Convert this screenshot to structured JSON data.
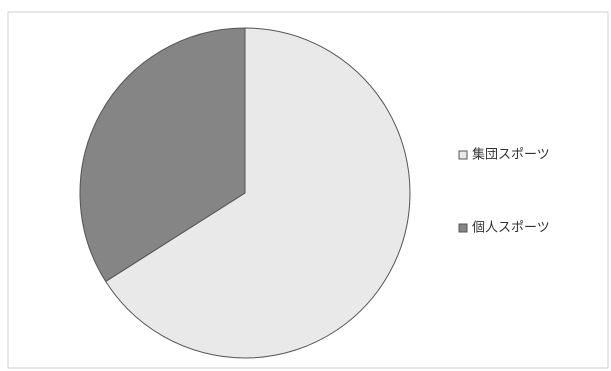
{
  "chart_data": {
    "type": "pie",
    "categories": [
      "集団スポーツ",
      "個人スポーツ"
    ],
    "values": [
      66,
      34
    ],
    "colors": [
      "#e9e9e9",
      "#858585"
    ],
    "legend": "right"
  }
}
